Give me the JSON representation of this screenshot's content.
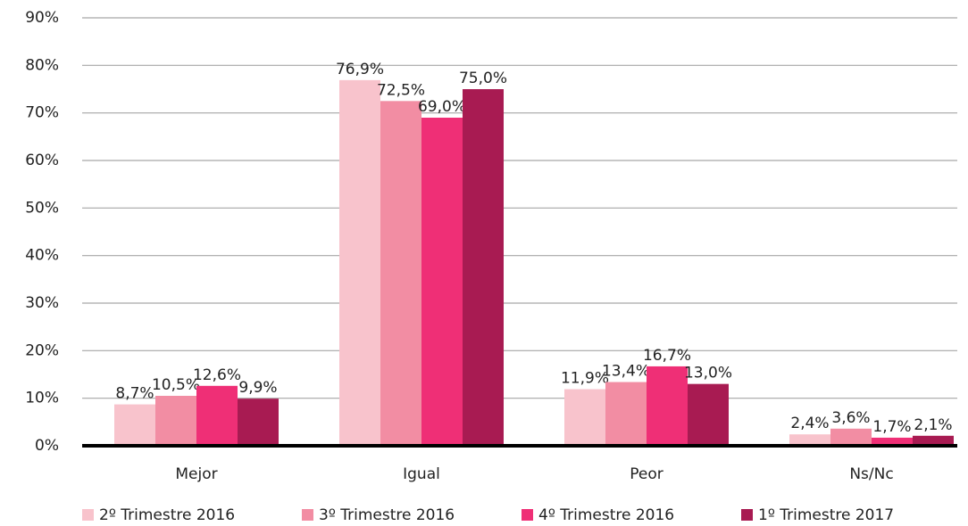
{
  "chart_data": {
    "type": "bar",
    "categories": [
      "Mejor",
      "Igual",
      "Peor",
      "Ns/Nc"
    ],
    "series": [
      {
        "name": "2º Trimestre 2016",
        "color": "#f8c3cc",
        "values": [
          8.7,
          76.9,
          11.9,
          2.4
        ],
        "value_labels": [
          "8,7%",
          "76,9%",
          "11,9%",
          "2,4%"
        ]
      },
      {
        "name": "3º Trimestre 2016",
        "color": "#f28da3",
        "values": [
          10.5,
          72.5,
          13.4,
          3.6
        ],
        "value_labels": [
          "10,5%",
          "72,5%",
          "13,4%",
          "3,6%"
        ]
      },
      {
        "name": "4º Trimestre 2016",
        "color": "#ef2f76",
        "values": [
          12.6,
          69.0,
          16.7,
          1.7
        ],
        "value_labels": [
          "12,6%",
          "69,0%",
          "16,7%",
          "1,7%"
        ]
      },
      {
        "name": "1º Trimestre 2017",
        "color": "#a81b52",
        "values": [
          9.9,
          75.0,
          13.0,
          2.1
        ],
        "value_labels": [
          "9,9%",
          "75,0%",
          "13,0%",
          "2,1%"
        ]
      }
    ],
    "ylim": [
      0,
      90
    ],
    "yticks": [
      {
        "value": 0,
        "label": "0%"
      },
      {
        "value": 10,
        "label": "10%"
      },
      {
        "value": 20,
        "label": "20%"
      },
      {
        "value": 30,
        "label": "30%"
      },
      {
        "value": 40,
        "label": "40%"
      },
      {
        "value": 50,
        "label": "50%"
      },
      {
        "value": 60,
        "label": "60%"
      },
      {
        "value": 70,
        "label": "70%"
      },
      {
        "value": 80,
        "label": "80%"
      },
      {
        "value": 90,
        "label": "90%"
      }
    ],
    "grid": true,
    "legend": "bottom"
  }
}
